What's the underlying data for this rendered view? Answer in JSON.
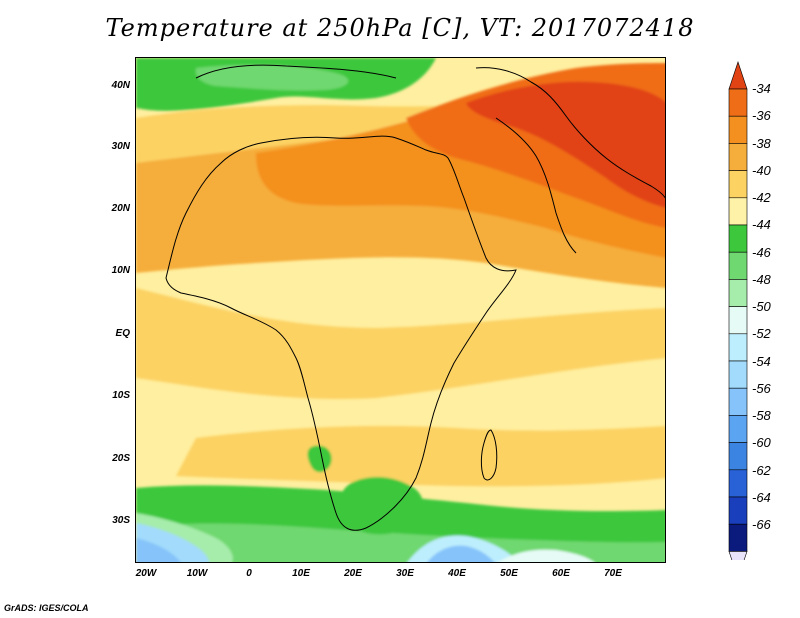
{
  "title": "Temperature at 250hPa [C], VT: 2017072418",
  "footer": "GrADS: IGES/COLA",
  "map": {
    "lat_labels": [
      "40N",
      "30N",
      "20N",
      "10N",
      "EQ",
      "10S",
      "20S",
      "30S"
    ],
    "lon_labels": [
      "20W",
      "10W",
      "0",
      "10E",
      "20E",
      "30E",
      "40E",
      "50E",
      "60E",
      "70E"
    ],
    "background_color": "#ffefa0"
  },
  "colorbar": {
    "labels": [
      "-34",
      "-36",
      "-38",
      "-40",
      "-42",
      "-44",
      "-46",
      "-48",
      "-50",
      "-52",
      "-54",
      "-56",
      "-58",
      "-60",
      "-62",
      "-64",
      "-66"
    ],
    "colors": [
      "#e14314",
      "#f06d18",
      "#f4901f",
      "#f5ad3b",
      "#fcd263",
      "#fef2a8",
      "#3cc73c",
      "#6fd870",
      "#a6ecaa",
      "#e6fbf6",
      "#bdeefd",
      "#a2dbfb",
      "#85c3fa",
      "#5aa4f2",
      "#3c84e2",
      "#2862d6",
      "#193fbd",
      "#0b1a7d",
      "#e8e2fb"
    ]
  }
}
